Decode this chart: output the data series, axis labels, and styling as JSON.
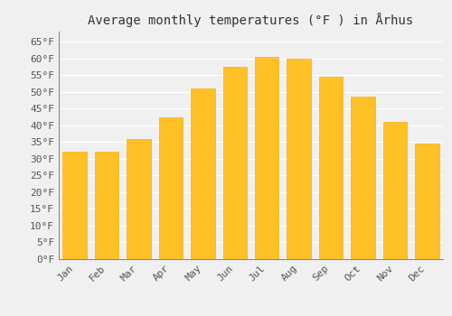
{
  "title": "Average monthly temperatures (°F ) in Århus",
  "months": [
    "Jan",
    "Feb",
    "Mar",
    "Apr",
    "May",
    "Jun",
    "Jul",
    "Aug",
    "Sep",
    "Oct",
    "Nov",
    "Dec"
  ],
  "values": [
    32,
    32,
    36,
    42.5,
    51,
    57.5,
    60.5,
    60,
    54.5,
    48.5,
    41,
    34.5
  ],
  "bar_color_face": "#FFC125",
  "bar_color_edge": "#FFB000",
  "yticks": [
    0,
    5,
    10,
    15,
    20,
    25,
    30,
    35,
    40,
    45,
    50,
    55,
    60,
    65
  ],
  "ytick_labels": [
    "0°F",
    "5°F",
    "10°F",
    "15°F",
    "20°F",
    "25°F",
    "30°F",
    "35°F",
    "40°F",
    "45°F",
    "50°F",
    "55°F",
    "60°F",
    "65°F"
  ],
  "ylim": [
    0,
    68
  ],
  "background_color": "#f0f0f0",
  "grid_color": "#ffffff",
  "title_fontsize": 10,
  "tick_fontsize": 8
}
